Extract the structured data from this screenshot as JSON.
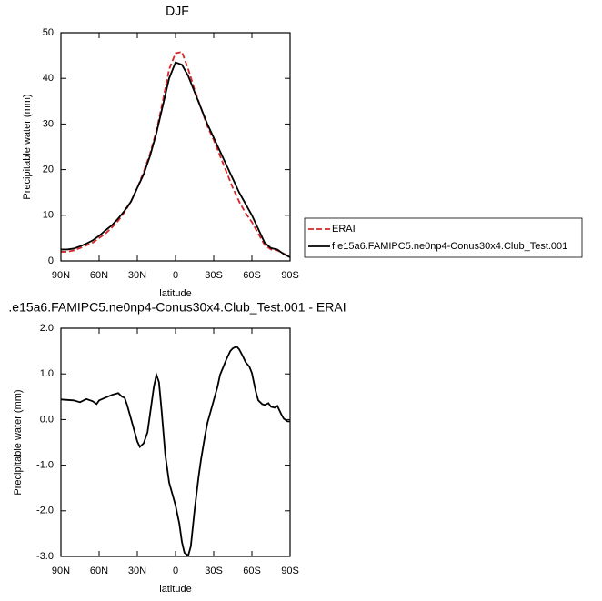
{
  "chart_data": [
    {
      "type": "line",
      "title": "DJF",
      "xlabel": "latitude",
      "ylabel": "Precipitable water (mm)",
      "x": [
        90,
        85,
        80,
        75,
        70,
        65,
        60,
        55,
        50,
        45,
        40,
        35,
        30,
        25,
        20,
        15,
        10,
        5,
        0,
        -5,
        -10,
        -15,
        -20,
        -25,
        -30,
        -35,
        -40,
        -45,
        -50,
        -55,
        -60,
        -65,
        -70,
        -75,
        -80,
        -85,
        -90
      ],
      "series": [
        {
          "name": "ERAI",
          "color": "#d62728",
          "line_style": "dashed",
          "values": [
            2,
            2,
            2.3,
            2.8,
            3.4,
            4,
            5,
            6,
            7.3,
            8.8,
            10.7,
            13,
            16,
            19.5,
            23.5,
            28.5,
            35,
            42,
            45.5,
            45.8,
            42,
            37.5,
            33.5,
            29.5,
            26.5,
            23,
            19.5,
            16,
            13,
            10.5,
            8.5,
            6,
            3.5,
            2.5,
            2.3,
            1.6,
            0.8
          ]
        },
        {
          "name": "f.e15a6.FAMIPC5.ne0np4-Conus30x4.Club_Test.001",
          "color": "#000000",
          "line_style": "solid",
          "values": [
            2.5,
            2.5,
            2.7,
            3.2,
            3.8,
            4.5,
            5.5,
            6.7,
            7.8,
            9.3,
            11,
            13,
            16,
            19,
            23,
            28,
            34,
            40,
            43.5,
            43,
            40.5,
            37,
            33.5,
            30,
            27,
            24,
            21,
            18,
            15,
            12.5,
            10,
            7,
            4,
            2.8,
            2.5,
            1.5,
            0.8
          ]
        }
      ],
      "xlim": [
        90,
        -90
      ],
      "xticks": [
        {
          "value": 90,
          "label": "90N"
        },
        {
          "value": 60,
          "label": "60N"
        },
        {
          "value": 30,
          "label": "30N"
        },
        0,
        {
          "value": -30,
          "label": "30S"
        },
        {
          "value": -60,
          "label": "60S"
        },
        {
          "value": -90,
          "label": "90S"
        }
      ],
      "ylim": [
        0,
        50
      ],
      "yticks": [
        0,
        10,
        20,
        30,
        40,
        50
      ],
      "legend": "right"
    },
    {
      "type": "line",
      "title": ".e15a6.FAMIPC5.ne0np4-Conus30x4.Club_Test.001 - ERAI",
      "xlabel": "latitude",
      "ylabel": "Precipitable water (mm)",
      "x": [
        90,
        80,
        75,
        70,
        65,
        62,
        60,
        55,
        50,
        45,
        42,
        40,
        38,
        35,
        32,
        30,
        28,
        25,
        22,
        20,
        17,
        15,
        13,
        11,
        8,
        5,
        2,
        0,
        -3,
        -5,
        -7,
        -10,
        -12,
        -15,
        -18,
        -20,
        -23,
        -25,
        -30,
        -33,
        -35,
        -40,
        -43,
        -45,
        -48,
        -50,
        -53,
        -55,
        -58,
        -60,
        -63,
        -65,
        -68,
        -70,
        -73,
        -75,
        -78,
        -80,
        -83,
        -85,
        -88,
        -90
      ],
      "series": [
        {
          "color": "#000000",
          "line_style": "solid",
          "values": [
            0.44,
            0.42,
            0.38,
            0.45,
            0.4,
            0.34,
            0.42,
            0.48,
            0.54,
            0.58,
            0.5,
            0.48,
            0.32,
            0.02,
            -0.28,
            -0.48,
            -0.6,
            -0.52,
            -0.28,
            0.12,
            0.72,
            0.98,
            0.82,
            0.22,
            -0.78,
            -1.38,
            -1.68,
            -1.88,
            -2.28,
            -2.68,
            -2.92,
            -2.98,
            -2.78,
            -1.98,
            -1.28,
            -0.88,
            -0.38,
            -0.08,
            0.42,
            0.72,
            0.98,
            1.32,
            1.5,
            1.56,
            1.6,
            1.54,
            1.38,
            1.26,
            1.16,
            1.02,
            0.62,
            0.42,
            0.34,
            0.32,
            0.36,
            0.28,
            0.26,
            0.3,
            0.12,
            0.02,
            -0.04,
            -0.04
          ]
        }
      ],
      "xlim": [
        90,
        -90
      ],
      "xticks": [
        {
          "value": 90,
          "label": "90N"
        },
        {
          "value": 60,
          "label": "60N"
        },
        {
          "value": 30,
          "label": "30N"
        },
        0,
        {
          "value": -30,
          "label": "30S"
        },
        {
          "value": -60,
          "label": "60S"
        },
        {
          "value": -90,
          "label": "90S"
        }
      ],
      "ylim": [
        -3,
        2
      ],
      "yticks": [
        {
          "value": -3,
          "label": "-3.0"
        },
        {
          "value": -2,
          "label": "-2.0"
        },
        {
          "value": -1,
          "label": "-1.0"
        },
        {
          "value": 0,
          "label": "0.0"
        },
        {
          "value": 1,
          "label": "1.0"
        },
        {
          "value": 2,
          "label": "2.0"
        }
      ]
    }
  ]
}
